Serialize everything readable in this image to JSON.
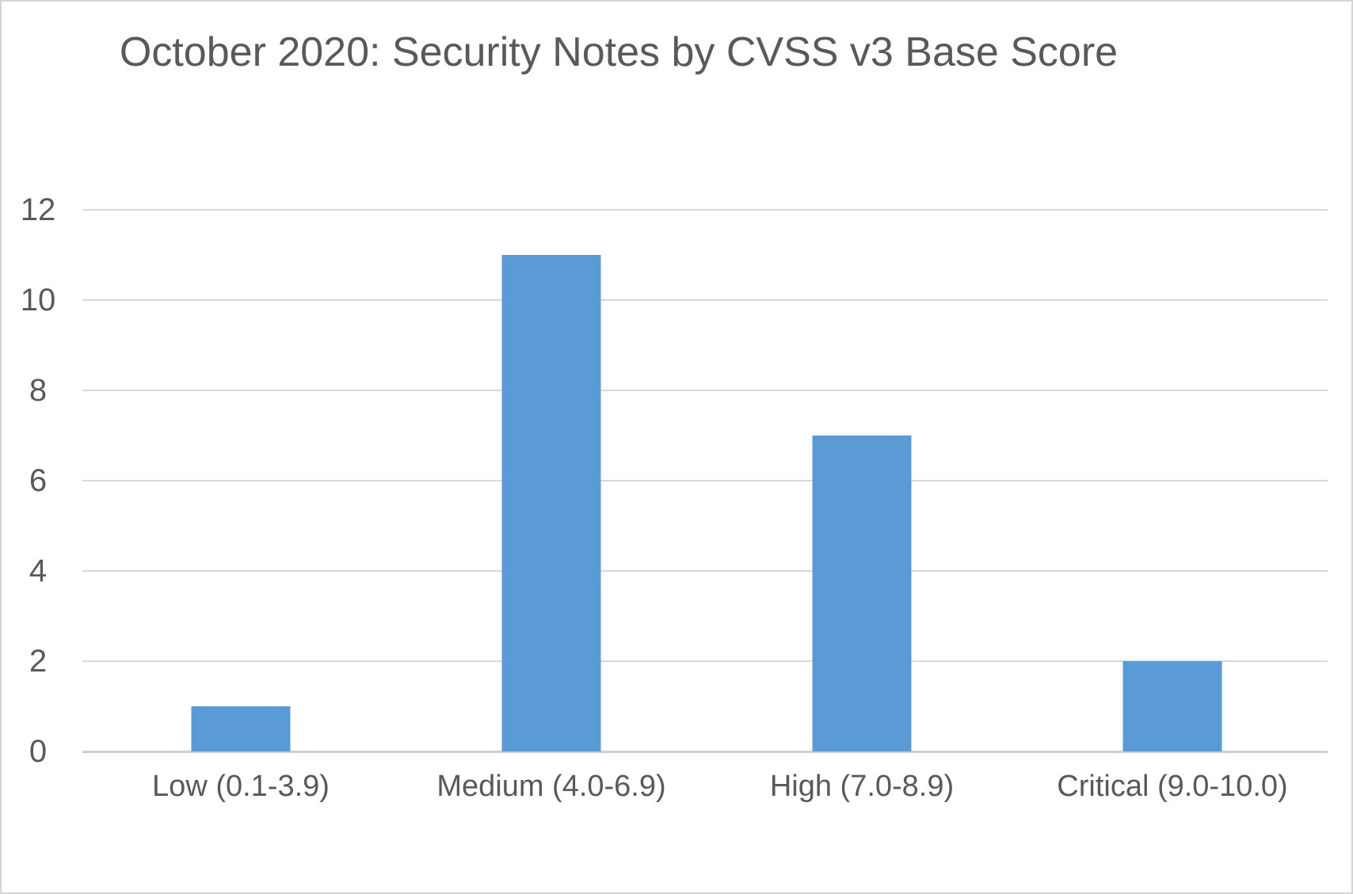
{
  "chart_data": {
    "type": "bar",
    "title": "October 2020: Security Notes by CVSS v3 Base Score",
    "categories": [
      "Low (0.1-3.9)",
      "Medium (4.0-6.9)",
      "High (7.0-8.9)",
      "Critical (9.0-10.0)"
    ],
    "values": [
      1,
      11,
      7,
      2
    ],
    "xlabel": "",
    "ylabel": "",
    "ylim": [
      0,
      12
    ],
    "yticks": [
      0,
      2,
      4,
      6,
      8,
      10,
      12
    ],
    "grid": "horizontal",
    "legend": "none",
    "colors": {
      "bar": "#5B9BD5",
      "gridline": "#D9D9D9",
      "axis_line": "#CFCFCF",
      "text": "#595959",
      "border": "#D5D5D5",
      "background": "#FFFFFF"
    }
  }
}
